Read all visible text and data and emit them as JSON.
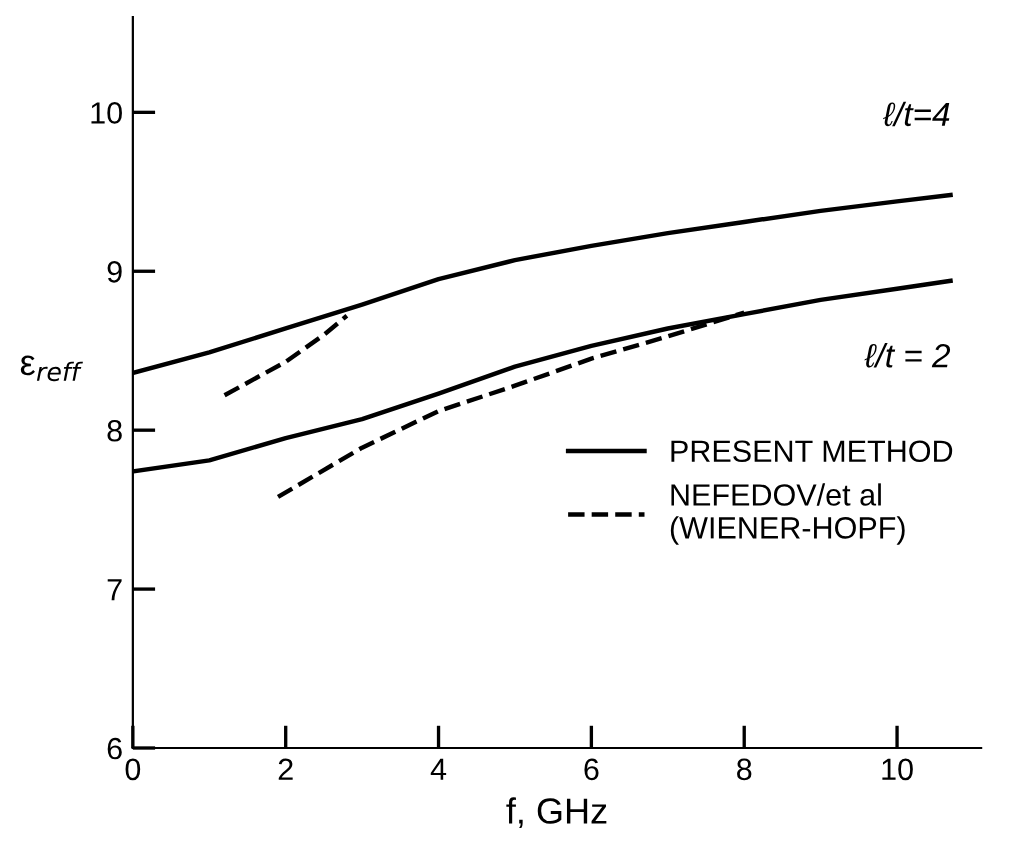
{
  "chart_data": {
    "type": "line",
    "xlabel": "f, GHz",
    "ylabel": "ε$_{reff}$",
    "xlim": [
      0,
      11.1
    ],
    "ylim": [
      6,
      10.6
    ],
    "xticks": [
      0,
      2,
      4,
      6,
      8,
      10
    ],
    "yticks": [
      6,
      7,
      8,
      9,
      10
    ],
    "grid": false,
    "legend": "right",
    "marker": "none",
    "series": [
      {
        "name": "PRESENT METHOD",
        "color": "#000000",
        "line_style": "solid",
        "x": [
          0,
          1,
          2,
          3,
          4,
          5,
          6,
          7,
          8,
          9,
          10,
          10.7
        ],
        "values": [
          8.36,
          8.49,
          8.64,
          8.79,
          8.95,
          9.07,
          9.16,
          9.24,
          9.31,
          9.38,
          9.44,
          9.48
        ]
      },
      {
        "color": "#000000",
        "line_style": "solid",
        "x": [
          0,
          1,
          2,
          3,
          4,
          5,
          6,
          7,
          8,
          9,
          10,
          10.7
        ],
        "values": [
          7.74,
          7.81,
          7.95,
          8.07,
          8.23,
          8.4,
          8.53,
          8.64,
          8.73,
          8.82,
          8.89,
          8.94
        ]
      },
      {
        "name": "NEFEDOV/et al\n(WIENER-HOPF)",
        "color": "#000000",
        "line_style": "dashed",
        "x": [
          1.2,
          2,
          2.5,
          2.8
        ],
        "values": [
          8.22,
          8.43,
          8.6,
          8.72
        ]
      },
      {
        "color": "#000000",
        "line_style": "dashed",
        "x": [
          1.9,
          3,
          4,
          5,
          6,
          7,
          8
        ],
        "values": [
          7.58,
          7.89,
          8.12,
          8.28,
          8.45,
          8.59,
          8.74
        ]
      }
    ],
    "annotations": [
      "ℓ/t=4",
      "ℓ/t = 2"
    ]
  }
}
